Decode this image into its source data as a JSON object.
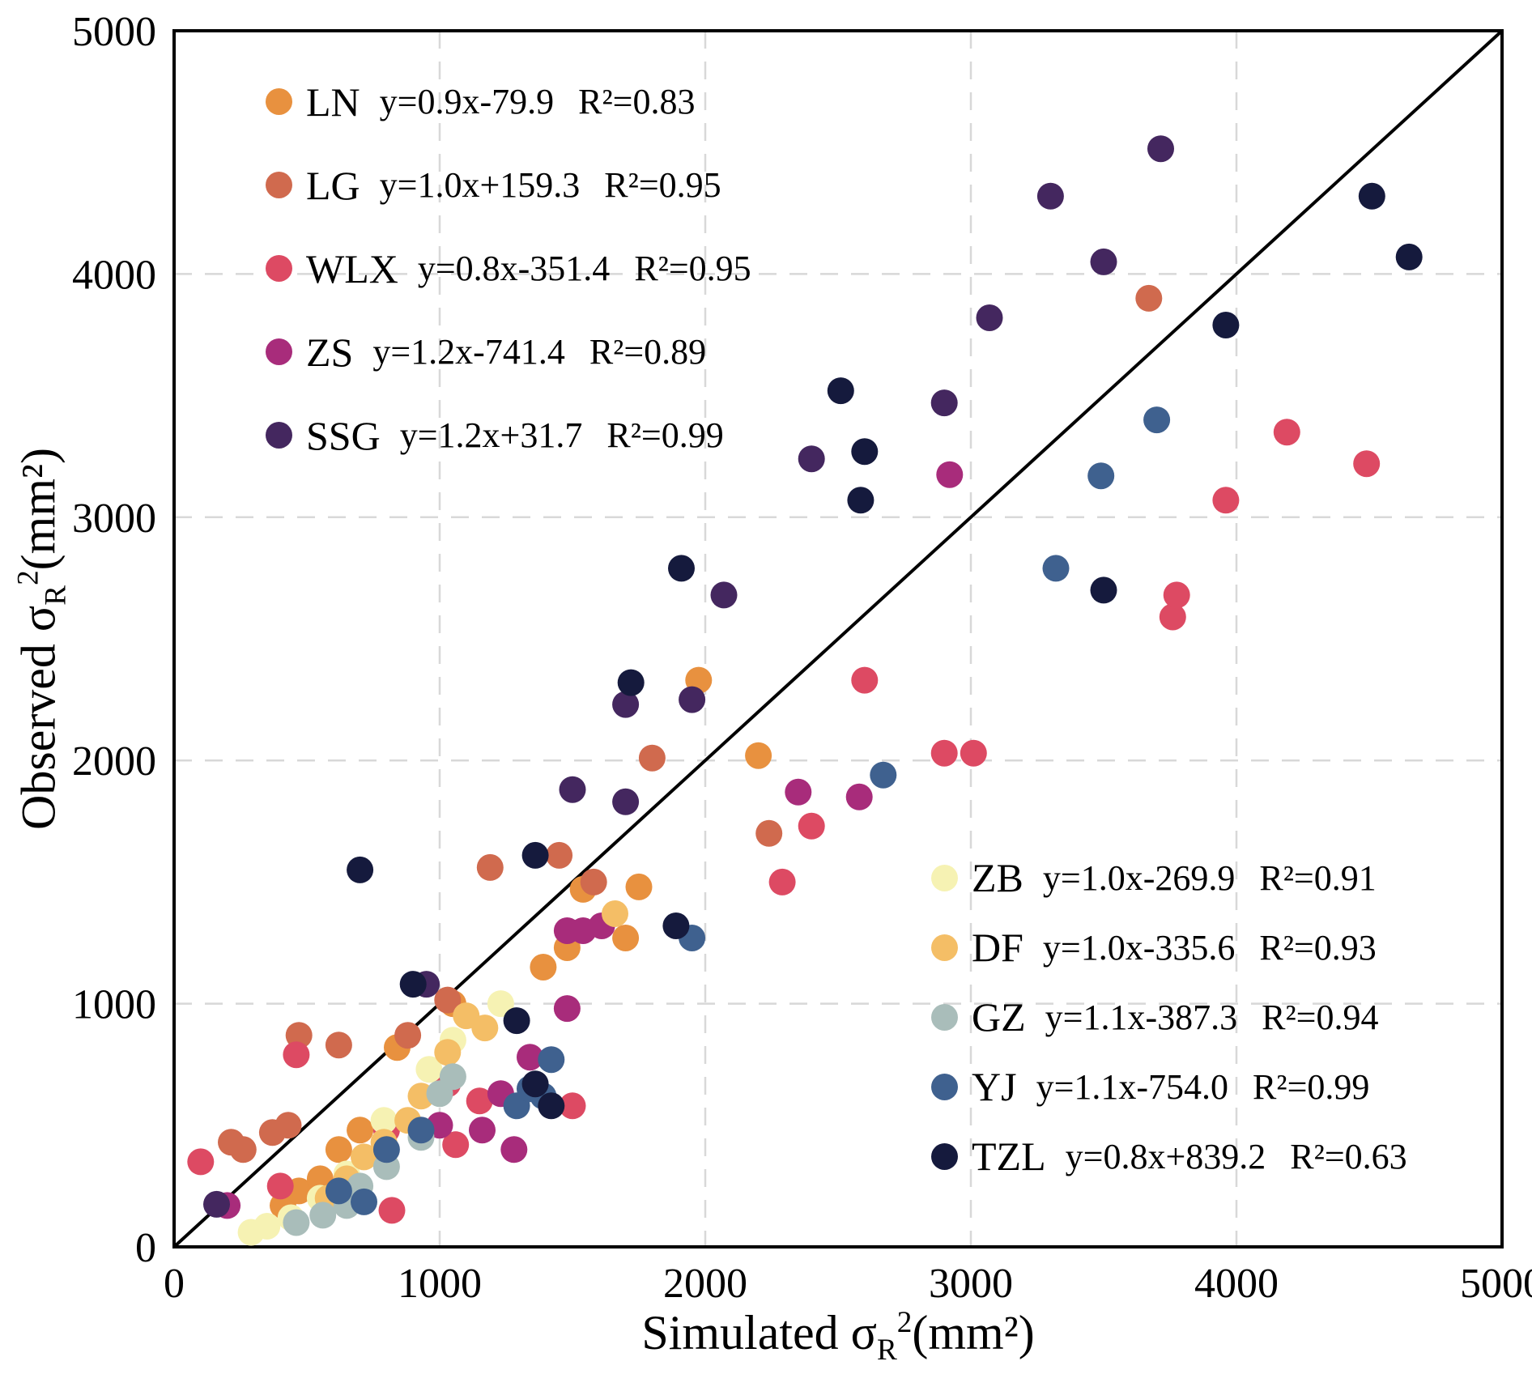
{
  "chart_data": {
    "type": "scatter",
    "title": "",
    "xlabel": "Simulated σR²(mm²)",
    "ylabel": "Observed σR²(mm²)",
    "xlabel_parts": {
      "prefix": "Simulated σ",
      "sub": "R",
      "sup": "2",
      "suffix": "(mm²)"
    },
    "ylabel_parts": {
      "prefix": "Observed σ",
      "sub": "R",
      "sup": "2",
      "suffix": "(mm²)"
    },
    "xlim": [
      0,
      5000
    ],
    "ylim": [
      0,
      5000
    ],
    "xticks": [
      0,
      1000,
      2000,
      3000,
      4000,
      5000
    ],
    "yticks": [
      0,
      1000,
      2000,
      3000,
      4000,
      5000
    ],
    "grid": "dashed",
    "grid_color": "#d8d8d8",
    "identity_line": true,
    "identity_line_color": "#000000",
    "series": [
      {
        "name": "LN",
        "color": "#E8913F",
        "equation": "y=0.9x-79.9",
        "r2": "R²=0.83",
        "legend": "top-left",
        "points": [
          [
            410,
            170
          ],
          [
            470,
            230
          ],
          [
            550,
            280
          ],
          [
            620,
            400
          ],
          [
            700,
            480
          ],
          [
            840,
            820
          ],
          [
            1050,
            1000
          ],
          [
            1390,
            1150
          ],
          [
            1480,
            1230
          ],
          [
            1540,
            1470
          ],
          [
            1700,
            1270
          ],
          [
            1750,
            1480
          ],
          [
            1975,
            2330
          ],
          [
            2200,
            2020
          ]
        ]
      },
      {
        "name": "LG",
        "color": "#D06A4E",
        "equation": "y=1.0x+159.3",
        "r2": "R²=0.95",
        "legend": "top-left",
        "points": [
          [
            215,
            430
          ],
          [
            260,
            400
          ],
          [
            370,
            470
          ],
          [
            430,
            500
          ],
          [
            470,
            870
          ],
          [
            620,
            830
          ],
          [
            880,
            870
          ],
          [
            1030,
            1015
          ],
          [
            1190,
            1560
          ],
          [
            1450,
            1610
          ],
          [
            1580,
            1500
          ],
          [
            1800,
            2010
          ],
          [
            2240,
            1700
          ],
          [
            3670,
            3900
          ]
        ]
      },
      {
        "name": "WLX",
        "color": "#DD4A63",
        "equation": "y=0.8x-351.4",
        "r2": "R²=0.95",
        "legend": "top-left",
        "points": [
          [
            100,
            350
          ],
          [
            400,
            250
          ],
          [
            460,
            790
          ],
          [
            800,
            480
          ],
          [
            820,
            150
          ],
          [
            1030,
            670
          ],
          [
            1060,
            420
          ],
          [
            1150,
            600
          ],
          [
            1500,
            580
          ],
          [
            2290,
            1500
          ],
          [
            2400,
            1730
          ],
          [
            2600,
            2330
          ],
          [
            2900,
            2030
          ],
          [
            3010,
            2030
          ],
          [
            3760,
            2590
          ],
          [
            3775,
            2680
          ],
          [
            3960,
            3070
          ],
          [
            4190,
            3350
          ],
          [
            4490,
            3220
          ]
        ]
      },
      {
        "name": "ZS",
        "color": "#A82C7B",
        "equation": "y=1.2x-741.4",
        "r2": "R²=0.89",
        "legend": "top-left",
        "points": [
          [
            200,
            170
          ],
          [
            1000,
            500
          ],
          [
            1160,
            480
          ],
          [
            1230,
            630
          ],
          [
            1280,
            400
          ],
          [
            1340,
            780
          ],
          [
            1480,
            980
          ],
          [
            1480,
            1300
          ],
          [
            1540,
            1300
          ],
          [
            1610,
            1320
          ],
          [
            2350,
            1870
          ],
          [
            2580,
            1850
          ],
          [
            2920,
            3175
          ]
        ]
      },
      {
        "name": "SSG",
        "color": "#44275F",
        "equation": "y=1.2x+31.7",
        "r2": "R²=0.99",
        "legend": "top-left",
        "points": [
          [
            160,
            175
          ],
          [
            950,
            1080
          ],
          [
            1500,
            1880
          ],
          [
            1700,
            1830
          ],
          [
            1700,
            2230
          ],
          [
            1950,
            2250
          ],
          [
            2070,
            2680
          ],
          [
            2400,
            3240
          ],
          [
            2900,
            3470
          ],
          [
            3070,
            3820
          ],
          [
            3300,
            4320
          ],
          [
            3500,
            4050
          ],
          [
            3715,
            4515
          ]
        ]
      },
      {
        "name": "ZB",
        "color": "#F6F2B3",
        "equation": "y=1.0x-269.9",
        "r2": "R²=0.91",
        "legend": "bottom-right",
        "points": [
          [
            290,
            60
          ],
          [
            350,
            85
          ],
          [
            440,
            120
          ],
          [
            550,
            200
          ],
          [
            650,
            300
          ],
          [
            790,
            520
          ],
          [
            960,
            730
          ],
          [
            1050,
            850
          ],
          [
            1230,
            1000
          ]
        ]
      },
      {
        "name": "DF",
        "color": "#F4BE66",
        "equation": "y=1.0x-335.6",
        "r2": "R²=0.93",
        "legend": "bottom-right",
        "points": [
          [
            580,
            200
          ],
          [
            650,
            280
          ],
          [
            715,
            370
          ],
          [
            790,
            430
          ],
          [
            880,
            520
          ],
          [
            930,
            620
          ],
          [
            1030,
            800
          ],
          [
            1100,
            950
          ],
          [
            1170,
            900
          ],
          [
            1660,
            1370
          ]
        ]
      },
      {
        "name": "GZ",
        "color": "#A9BDBA",
        "equation": "y=1.1x-387.3",
        "r2": "R²=0.94",
        "legend": "bottom-right",
        "points": [
          [
            460,
            100
          ],
          [
            560,
            130
          ],
          [
            650,
            170
          ],
          [
            700,
            250
          ],
          [
            800,
            330
          ],
          [
            930,
            450
          ],
          [
            1000,
            630
          ],
          [
            1050,
            700
          ]
        ]
      },
      {
        "name": "YJ",
        "color": "#3F618F",
        "equation": "y=1.1x-754.0",
        "r2": "R²=0.99",
        "legend": "bottom-right",
        "points": [
          [
            620,
            230
          ],
          [
            715,
            185
          ],
          [
            800,
            400
          ],
          [
            930,
            480
          ],
          [
            1290,
            580
          ],
          [
            1340,
            650
          ],
          [
            1390,
            620
          ],
          [
            1420,
            770
          ],
          [
            1950,
            1270
          ],
          [
            2670,
            1940
          ],
          [
            3320,
            2790
          ],
          [
            3490,
            3170
          ],
          [
            3700,
            3400
          ]
        ]
      },
      {
        "name": "TZL",
        "color": "#151A3D",
        "equation": "y=0.8x+839.2",
        "r2": "R²=0.63",
        "legend": "bottom-right",
        "points": [
          [
            700,
            1550
          ],
          [
            900,
            1080
          ],
          [
            1290,
            930
          ],
          [
            1360,
            670
          ],
          [
            1360,
            1610
          ],
          [
            1420,
            580
          ],
          [
            1720,
            2320
          ],
          [
            1890,
            1320
          ],
          [
            1910,
            2790
          ],
          [
            2510,
            3520
          ],
          [
            2585,
            3070
          ],
          [
            2600,
            3270
          ],
          [
            3500,
            2700
          ],
          [
            3960,
            3790
          ],
          [
            4510,
            4320
          ],
          [
            4650,
            4070
          ]
        ]
      }
    ]
  }
}
